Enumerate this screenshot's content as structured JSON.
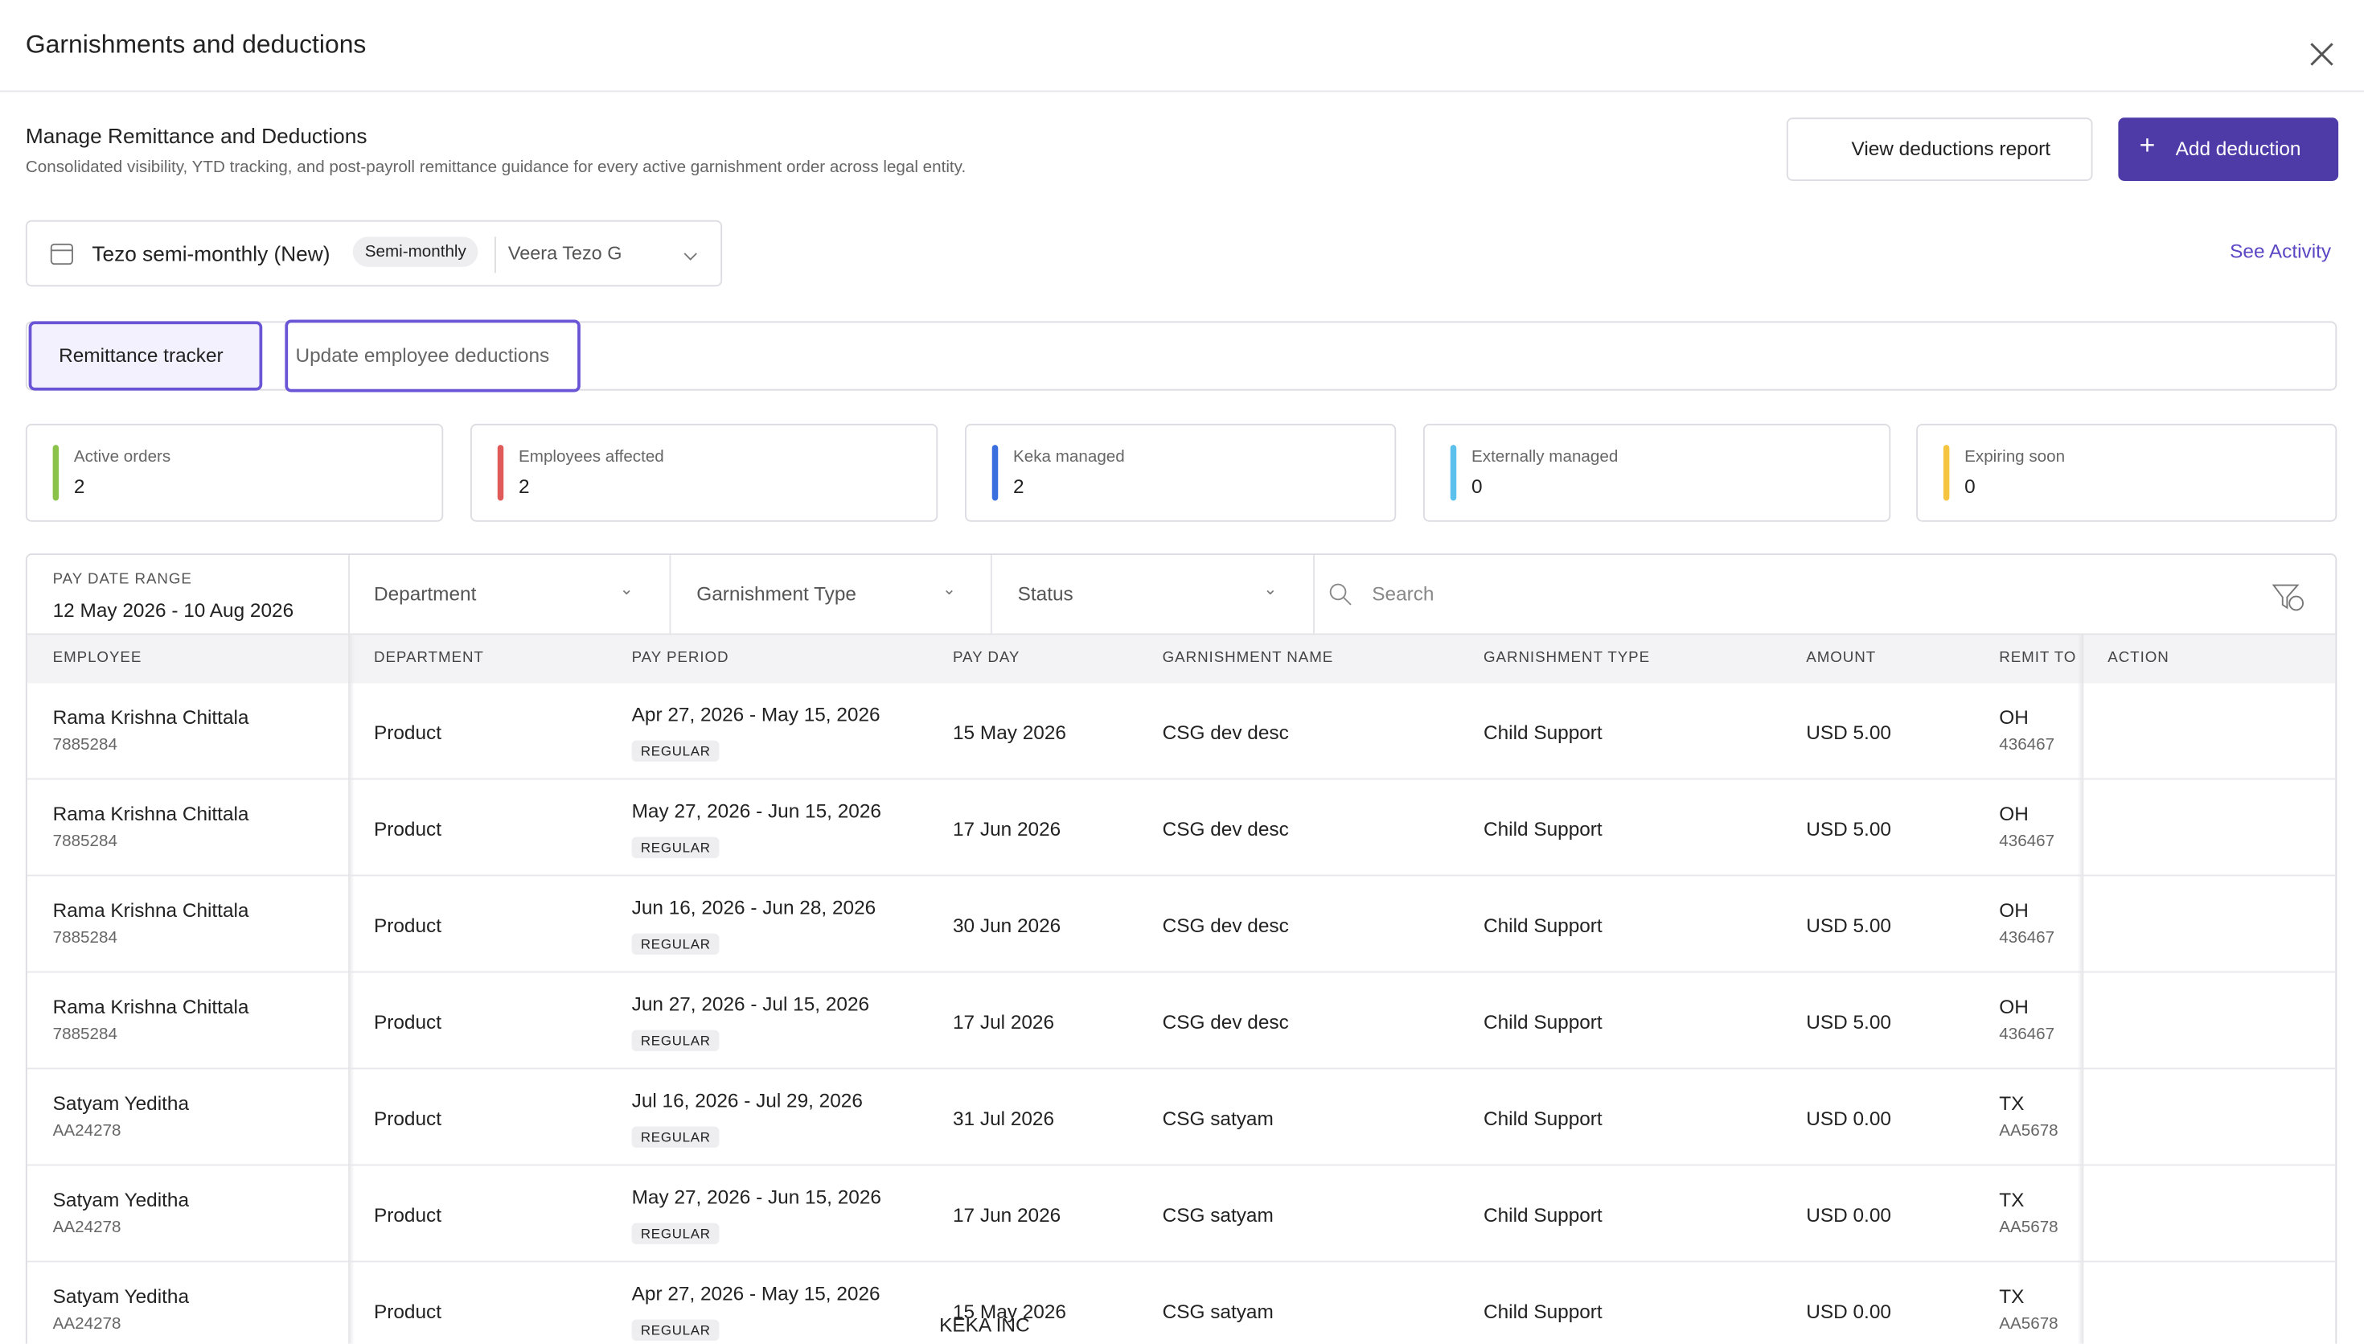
{
  "header": {
    "title": "Garnishments and deductions"
  },
  "section": {
    "title": "Manage Remittance and Deductions",
    "subtitle": "Consolidated visibility, YTD tracking, and post-payroll remittance guidance for every active garnishment order across legal entity."
  },
  "buttons": {
    "view_report": "View deductions report",
    "add_deduction": "Add deduction"
  },
  "see_activity": "See Activity",
  "selector": {
    "payroll": "Tezo semi-monthly (New)",
    "frequency": "Semi-monthly",
    "employee": "Veera Tezo G"
  },
  "tabs": [
    "Remittance tracker",
    "Update employee deductions"
  ],
  "stats": [
    {
      "label": "Active orders",
      "value": 2
    },
    {
      "label": "Employees affected",
      "value": 2
    },
    {
      "label": "Keka managed",
      "value": 2
    },
    {
      "label": "Externally managed",
      "value": 0
    },
    {
      "label": "Expiring soon",
      "value": 0
    }
  ],
  "filters": {
    "pay_date_range_label": "PAY DATE RANGE",
    "pay_date_range": "12 May 2026 - 10 Aug 2026",
    "department": "Department",
    "garnishment_type": "Garnishment Type",
    "status": "Status",
    "search": "Search"
  },
  "table": {
    "columns": [
      "EMPLOYEE",
      "DEPARTMENT",
      "PAY PERIOD",
      "PAY DAY",
      "GARNISHMENT NAME",
      "GARNISHMENT TYPE",
      "AMOUNT",
      "REMIT TO",
      "ACTION"
    ],
    "rows": [
      {
        "employee": "Rama Krishna Chittala",
        "employee_id": "7885284",
        "department": "Product",
        "pay_period": "Apr 27, 2026 - May 15, 2026",
        "period_type": "REGULAR",
        "pay_day": "15 May 2026",
        "garnishment_name": "CSG dev desc",
        "garnishment_type": "Child Support",
        "amount": "USD 5.00",
        "remit_state": "OH",
        "remit_code": "436467"
      },
      {
        "employee": "Rama Krishna Chittala",
        "employee_id": "7885284",
        "department": "Product",
        "pay_period": "May 27, 2026 - Jun 15, 2026",
        "period_type": "REGULAR",
        "pay_day": "17 Jun 2026",
        "garnishment_name": "CSG dev desc",
        "garnishment_type": "Child Support",
        "amount": "USD 5.00",
        "remit_state": "OH",
        "remit_code": "436467"
      },
      {
        "employee": "Rama Krishna Chittala",
        "employee_id": "7885284",
        "department": "Product",
        "pay_period": "Jun 16, 2026 - Jun 28, 2026",
        "period_type": "REGULAR",
        "pay_day": "30 Jun 2026",
        "garnishment_name": "CSG dev desc",
        "garnishment_type": "Child Support",
        "amount": "USD 5.00",
        "remit_state": "OH",
        "remit_code": "436467"
      },
      {
        "employee": "Rama Krishna Chittala",
        "employee_id": "7885284",
        "department": "Product",
        "pay_period": "Jun 27, 2026 - Jul 15, 2026",
        "period_type": "REGULAR",
        "pay_day": "17 Jul 2026",
        "garnishment_name": "CSG dev desc",
        "garnishment_type": "Child Support",
        "amount": "USD 5.00",
        "remit_state": "OH",
        "remit_code": "436467"
      },
      {
        "employee": "Satyam Yeditha",
        "employee_id": "AA24278",
        "department": "Product",
        "pay_period": "Jul 16, 2026 - Jul 29, 2026",
        "period_type": "REGULAR",
        "pay_day": "31 Jul 2026",
        "garnishment_name": "CSG satyam",
        "garnishment_type": "Child Support",
        "amount": "USD 0.00",
        "remit_state": "TX",
        "remit_code": "AA5678"
      },
      {
        "employee": "Satyam Yeditha",
        "employee_id": "AA24278",
        "department": "Product",
        "pay_period": "May 27, 2026 - Jun 15, 2026",
        "period_type": "REGULAR",
        "pay_day": "17 Jun 2026",
        "garnishment_name": "CSG satyam",
        "garnishment_type": "Child Support",
        "amount": "USD 0.00",
        "remit_state": "TX",
        "remit_code": "AA5678"
      },
      {
        "employee": "Satyam Yeditha",
        "employee_id": "AA24278",
        "department": "Product",
        "pay_period": "Apr 27, 2026 - May 15, 2026",
        "period_type": "REGULAR",
        "pay_day": "15 May 2026",
        "garnishment_name": "CSG satyam",
        "garnishment_type": "Child Support",
        "amount": "USD 0.00",
        "remit_state": "TX",
        "remit_code": "AA5678"
      }
    ]
  },
  "footer": "KEKA INC"
}
